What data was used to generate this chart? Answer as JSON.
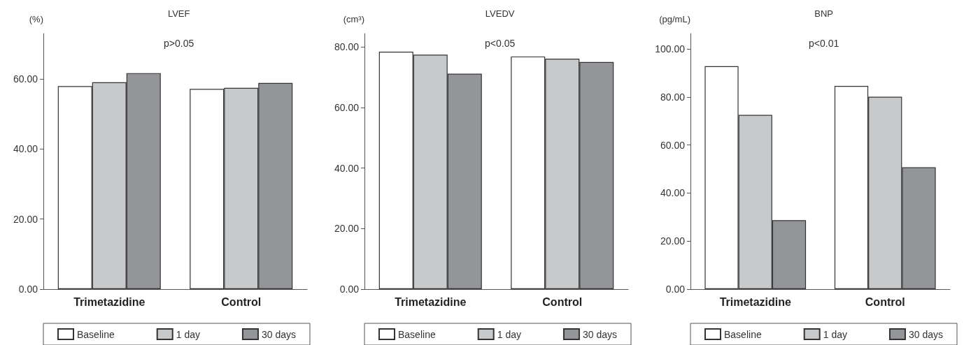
{
  "chart_data": [
    {
      "type": "bar",
      "title": "LVEF",
      "ylabel": "(%)",
      "annotations": [
        "p>0.05"
      ],
      "categories": [
        "Trimetazidine",
        "Control"
      ],
      "series": [
        {
          "name": "Baseline",
          "color": "#ffffff",
          "values": [
            58.0,
            57.2
          ]
        },
        {
          "name": "1 day",
          "color": "#c8c9cb",
          "values": [
            59.1,
            57.5
          ]
        },
        {
          "name": "30 days",
          "color": "#939598",
          "values": [
            61.7,
            58.9
          ]
        }
      ],
      "ylim": [
        0,
        73
      ],
      "yticks": [
        {
          "value": 0,
          "label": "0.00"
        },
        {
          "value": 20,
          "label": "20.00"
        },
        {
          "value": 40,
          "label": "40.00"
        },
        {
          "value": 60,
          "label": "60.00"
        }
      ],
      "grid": false,
      "legend": "bottom"
    },
    {
      "type": "bar",
      "title": "LVEDV",
      "ylabel": "(cm³)",
      "annotations": [
        "p<0.05"
      ],
      "categories": [
        "Trimetazidine",
        "Control"
      ],
      "series": [
        {
          "name": "Baseline",
          "color": "#ffffff",
          "values": [
            78.5,
            76.9
          ]
        },
        {
          "name": "1 day",
          "color": "#c8c9cb",
          "values": [
            77.5,
            76.2
          ]
        },
        {
          "name": "30 days",
          "color": "#939598",
          "values": [
            71.2,
            75.1
          ]
        }
      ],
      "ylim": [
        0,
        84.5
      ],
      "yticks": [
        {
          "value": 0,
          "label": "0.00"
        },
        {
          "value": 20,
          "label": "20.00"
        },
        {
          "value": 40,
          "label": "40.00"
        },
        {
          "value": 60,
          "label": "60.00"
        },
        {
          "value": 80,
          "label": "80.00"
        }
      ],
      "grid": false,
      "legend": "bottom"
    },
    {
      "type": "bar",
      "title": "BNP",
      "ylabel": "(pg/mL)",
      "annotations": [
        "p<0.01"
      ],
      "categories": [
        "Trimetazidine",
        "Control"
      ],
      "series": [
        {
          "name": "Baseline",
          "color": "#ffffff",
          "values": [
            92.8,
            84.6
          ]
        },
        {
          "name": "1 day",
          "color": "#c8c9cb",
          "values": [
            72.5,
            80.1
          ]
        },
        {
          "name": "30 days",
          "color": "#939598",
          "values": [
            28.7,
            50.7
          ]
        }
      ],
      "ylim": [
        0,
        106.4
      ],
      "yticks": [
        {
          "value": 0,
          "label": "0.00"
        },
        {
          "value": 20,
          "label": "20.00"
        },
        {
          "value": 40,
          "label": "40.00"
        },
        {
          "value": 60,
          "label": "60.00"
        },
        {
          "value": 80,
          "label": "80.00"
        },
        {
          "value": 100,
          "label": "100.00"
        }
      ],
      "grid": false,
      "legend": "bottom"
    }
  ]
}
